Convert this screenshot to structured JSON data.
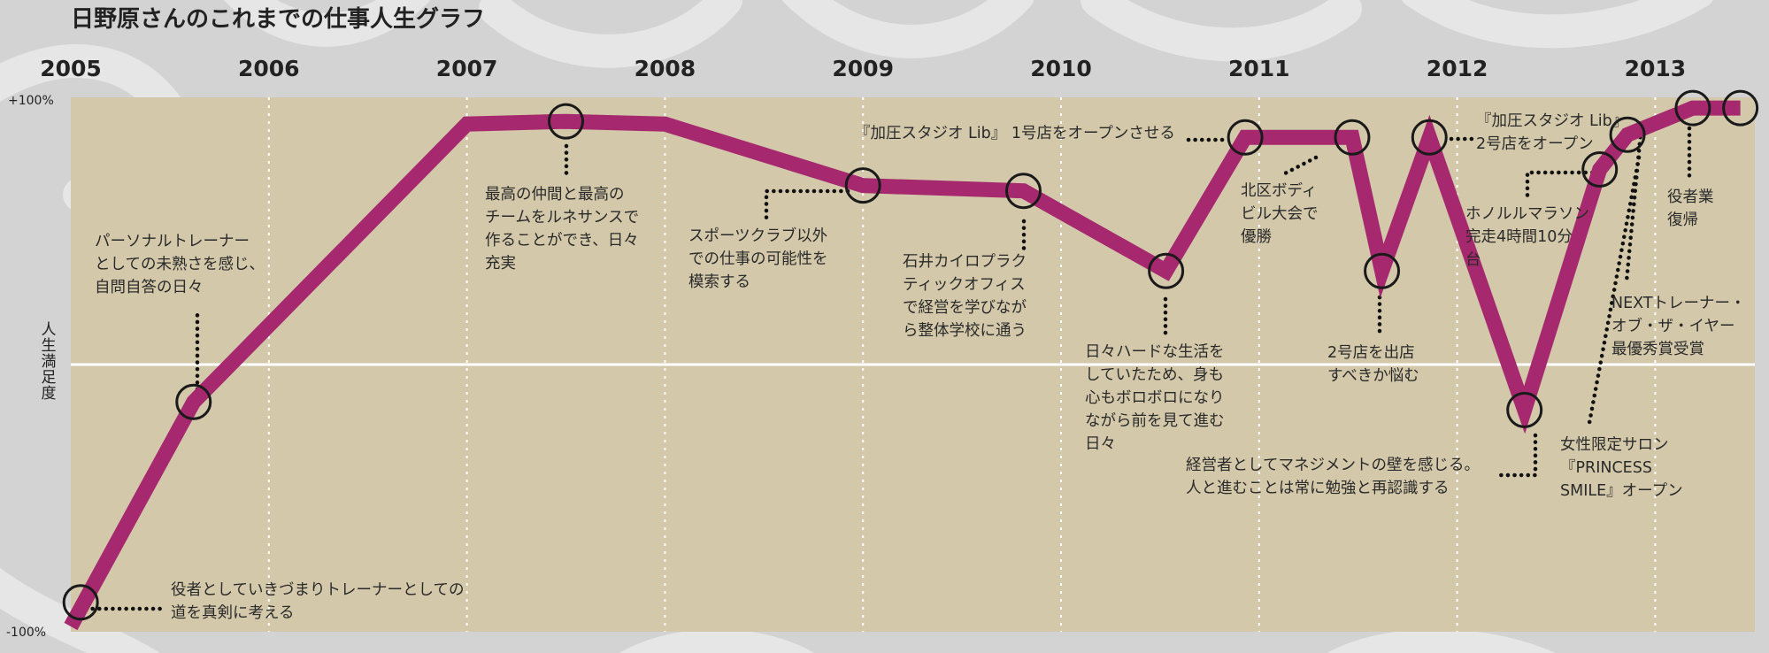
{
  "title": "日野原さんのこれまでの仕事人生グラフ",
  "colors": {
    "background": "#d3d3d3",
    "plot": "#d3c8a9",
    "line": "#a6296f",
    "grid": "#ffffff",
    "text": "#222222"
  },
  "chart_data": {
    "type": "line",
    "title": "日野原さんのこれまでの仕事人生グラフ",
    "xlabel": "",
    "ylabel": "人生満足度",
    "xlim": [
      2005.0,
      2013.5
    ],
    "ylim": [
      -100,
      100
    ],
    "x_ticks": [
      "2005",
      "2006",
      "2007",
      "2008",
      "2009",
      "2010",
      "2011",
      "2012",
      "2013"
    ],
    "y_ticks": [
      "+100%",
      "-100%"
    ],
    "grid": true,
    "series": [
      {
        "values": [
          {
            "x": 2005.0,
            "y": -98
          },
          {
            "x": 2005.62,
            "y": -14
          },
          {
            "x": 2007.0,
            "y": 90
          },
          {
            "x": 2007.5,
            "y": 91
          },
          {
            "x": 2008.0,
            "y": 90
          },
          {
            "x": 2009.0,
            "y": 67
          },
          {
            "x": 2009.81,
            "y": 65
          },
          {
            "x": 2010.53,
            "y": 35
          },
          {
            "x": 2010.93,
            "y": 85
          },
          {
            "x": 2011.47,
            "y": 85
          },
          {
            "x": 2011.62,
            "y": 35
          },
          {
            "x": 2011.86,
            "y": 85
          },
          {
            "x": 2012.34,
            "y": -17
          },
          {
            "x": 2012.72,
            "y": 73
          },
          {
            "x": 2012.86,
            "y": 86
          },
          {
            "x": 2013.19,
            "y": 96
          },
          {
            "x": 2013.43,
            "y": 96
          }
        ]
      }
    ],
    "markers": [
      {
        "x": 2005.05,
        "y": -89
      },
      {
        "x": 2005.62,
        "y": -14
      },
      {
        "x": 2007.5,
        "y": 91
      },
      {
        "x": 2009.0,
        "y": 67
      },
      {
        "x": 2009.81,
        "y": 65
      },
      {
        "x": 2010.53,
        "y": 35
      },
      {
        "x": 2010.93,
        "y": 85
      },
      {
        "x": 2011.47,
        "y": 85
      },
      {
        "x": 2011.62,
        "y": 35
      },
      {
        "x": 2011.86,
        "y": 85
      },
      {
        "x": 2012.34,
        "y": -17
      },
      {
        "x": 2012.72,
        "y": 73
      },
      {
        "x": 2012.86,
        "y": 86
      },
      {
        "x": 2013.19,
        "y": 96
      },
      {
        "x": 2013.43,
        "y": 96
      }
    ],
    "annotations": [
      {
        "lines": [
          "役者としていきづまりトレーナーとしての",
          "道を真剣に考える"
        ]
      },
      {
        "lines": [
          "パーソナルトレーナー",
          "としての未熟さを感じ、",
          "自問自答の日々"
        ]
      },
      {
        "lines": [
          "最高の仲間と最高の",
          "チームをルネサンスで",
          "作ることができ、日々",
          "充実"
        ]
      },
      {
        "lines": [
          "スポーツクラブ以外",
          "での仕事の可能性を",
          "模索する"
        ]
      },
      {
        "lines": [
          "石井カイロプラク",
          "ティックオフィス",
          "で経営を学びなが",
          "ら整体学校に通う"
        ]
      },
      {
        "lines": [
          "日々ハードな生活を",
          "していたため、身も",
          "心もボロボロになり",
          "ながら前を見て進む",
          "日々"
        ]
      },
      {
        "lines": [
          "『加圧スタジオ Lib』 1号店をオープンさせる"
        ]
      },
      {
        "lines": [
          "北区ボディ",
          "ビル大会で",
          "優勝"
        ]
      },
      {
        "lines": [
          "2号店を出店",
          "すべきか悩む"
        ]
      },
      {
        "lines": [
          "『加圧スタジオ Lib』",
          "2号店をオープン"
        ]
      },
      {
        "lines": [
          "経営者としてマネジメントの壁を感じる。",
          "人と進むことは常に勉強と再認識する"
        ]
      },
      {
        "lines": [
          "ホノルルマラソン",
          "完走4時間10分",
          "台"
        ]
      },
      {
        "lines": [
          "女性限定サロン",
          "『PRINCESS",
          "SMILE』オープン"
        ]
      },
      {
        "lines": [
          "NEXTトレーナー・",
          "オブ・ザ・イヤー",
          "最優秀賞受賞"
        ]
      },
      {
        "lines": [
          "役者業",
          "復帰"
        ]
      }
    ]
  }
}
